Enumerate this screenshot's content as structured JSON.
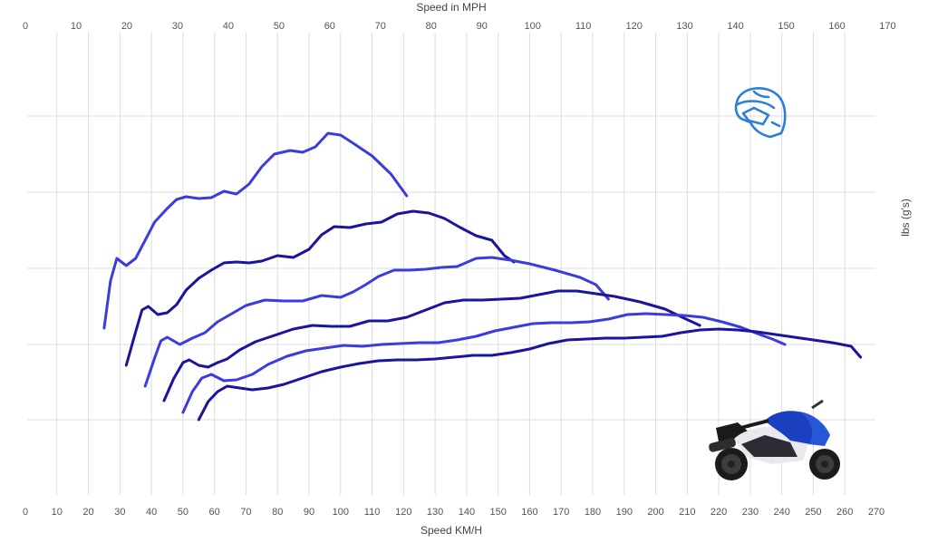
{
  "chart_data": {
    "type": "line",
    "xlabel_bottom": "Speed KM/H",
    "xlabel_top": "Speed in MPH",
    "ylabel": "lbs (g's)",
    "x_ticks_kmh": [
      0,
      10,
      20,
      30,
      40,
      50,
      60,
      70,
      80,
      90,
      100,
      110,
      120,
      130,
      140,
      150,
      160,
      170,
      180,
      190,
      200,
      210,
      220,
      230,
      240,
      250,
      260,
      270
    ],
    "x_ticks_mph": [
      0,
      10,
      20,
      30,
      40,
      50,
      60,
      70,
      80,
      90,
      100,
      110,
      120,
      130,
      140,
      150,
      160,
      170
    ],
    "xlim_kmh": [
      0,
      270
    ],
    "grid": true,
    "colors": {
      "light": "#3a3cdc",
      "dark": "#1a159c",
      "helmet": "#2a7fd6"
    },
    "icons": {
      "helmet": "helmet-icon",
      "motorcycle": "motorcycle-image"
    },
    "series": [
      {
        "color": "light",
        "points": [
          [
            25,
            362
          ],
          [
            27,
            310
          ],
          [
            29,
            285
          ],
          [
            32,
            293
          ],
          [
            35,
            285
          ],
          [
            38,
            265
          ],
          [
            41,
            245
          ],
          [
            45,
            230
          ],
          [
            48,
            220
          ],
          [
            51,
            217
          ],
          [
            55,
            219
          ],
          [
            59,
            218
          ],
          [
            63,
            211
          ],
          [
            67,
            214
          ],
          [
            71,
            203
          ],
          [
            75,
            184
          ],
          [
            79,
            170
          ],
          [
            84,
            166
          ],
          [
            88,
            168
          ],
          [
            92,
            162
          ],
          [
            96,
            147
          ],
          [
            100,
            149
          ],
          [
            104,
            158
          ],
          [
            110,
            172
          ],
          [
            116,
            192
          ],
          [
            121,
            216
          ]
        ]
      },
      {
        "color": "dark",
        "points": [
          [
            32,
            403
          ],
          [
            35,
            366
          ],
          [
            37,
            342
          ],
          [
            39,
            338
          ],
          [
            42,
            347
          ],
          [
            45,
            345
          ],
          [
            48,
            336
          ],
          [
            51,
            320
          ],
          [
            55,
            307
          ],
          [
            59,
            298
          ],
          [
            63,
            290
          ],
          [
            67,
            289
          ],
          [
            71,
            290
          ],
          [
            75,
            288
          ],
          [
            80,
            282
          ],
          [
            85,
            284
          ],
          [
            90,
            275
          ],
          [
            94,
            259
          ],
          [
            98,
            250
          ],
          [
            103,
            251
          ],
          [
            108,
            247
          ],
          [
            113,
            245
          ],
          [
            118,
            236
          ],
          [
            123,
            233
          ],
          [
            128,
            235
          ],
          [
            133,
            241
          ],
          [
            138,
            251
          ],
          [
            143,
            260
          ],
          [
            148,
            265
          ],
          [
            152,
            282
          ],
          [
            155,
            289
          ]
        ]
      },
      {
        "color": "light",
        "points": [
          [
            38,
            426
          ],
          [
            41,
            395
          ],
          [
            43,
            376
          ],
          [
            45,
            372
          ],
          [
            49,
            380
          ],
          [
            53,
            373
          ],
          [
            57,
            367
          ],
          [
            61,
            355
          ],
          [
            65,
            347
          ],
          [
            70,
            337
          ],
          [
            76,
            331
          ],
          [
            82,
            332
          ],
          [
            88,
            332
          ],
          [
            94,
            326
          ],
          [
            100,
            328
          ],
          [
            104,
            322
          ],
          [
            108,
            314
          ],
          [
            112,
            305
          ],
          [
            117,
            298
          ],
          [
            122,
            298
          ],
          [
            127,
            297
          ],
          [
            132,
            295
          ],
          [
            137,
            294
          ],
          [
            143,
            285
          ],
          [
            148,
            284
          ],
          [
            154,
            287
          ],
          [
            160,
            291
          ],
          [
            168,
            298
          ],
          [
            176,
            306
          ],
          [
            181,
            314
          ],
          [
            185,
            330
          ]
        ]
      },
      {
        "color": "dark",
        "points": [
          [
            44,
            442
          ],
          [
            47,
            418
          ],
          [
            50,
            400
          ],
          [
            52,
            397
          ],
          [
            55,
            403
          ],
          [
            58,
            405
          ],
          [
            61,
            400
          ],
          [
            64,
            396
          ],
          [
            68,
            386
          ],
          [
            73,
            377
          ],
          [
            79,
            370
          ],
          [
            85,
            363
          ],
          [
            91,
            359
          ],
          [
            97,
            360
          ],
          [
            103,
            360
          ],
          [
            109,
            354
          ],
          [
            115,
            354
          ],
          [
            121,
            350
          ],
          [
            127,
            342
          ],
          [
            133,
            334
          ],
          [
            139,
            331
          ],
          [
            145,
            331
          ],
          [
            151,
            330
          ],
          [
            157,
            329
          ],
          [
            163,
            325
          ],
          [
            169,
            321
          ],
          [
            175,
            321
          ],
          [
            181,
            324
          ],
          [
            187,
            327
          ],
          [
            195,
            333
          ],
          [
            203,
            341
          ],
          [
            209,
            351
          ],
          [
            214,
            359
          ]
        ]
      },
      {
        "color": "light",
        "points": [
          [
            50,
            455
          ],
          [
            53,
            432
          ],
          [
            56,
            417
          ],
          [
            59,
            413
          ],
          [
            63,
            420
          ],
          [
            67,
            419
          ],
          [
            72,
            413
          ],
          [
            77,
            402
          ],
          [
            83,
            393
          ],
          [
            89,
            387
          ],
          [
            95,
            384
          ],
          [
            101,
            381
          ],
          [
            107,
            382
          ],
          [
            113,
            380
          ],
          [
            119,
            379
          ],
          [
            125,
            378
          ],
          [
            131,
            378
          ],
          [
            137,
            375
          ],
          [
            143,
            371
          ],
          [
            149,
            365
          ],
          [
            155,
            361
          ],
          [
            161,
            357
          ],
          [
            167,
            356
          ],
          [
            173,
            356
          ],
          [
            179,
            355
          ],
          [
            185,
            352
          ],
          [
            191,
            347
          ],
          [
            197,
            346
          ],
          [
            203,
            347
          ],
          [
            209,
            348
          ],
          [
            215,
            350
          ],
          [
            221,
            355
          ],
          [
            227,
            361
          ],
          [
            233,
            369
          ],
          [
            237,
            374
          ],
          [
            241,
            380
          ]
        ]
      },
      {
        "color": "dark",
        "points": [
          [
            55,
            463
          ],
          [
            58,
            443
          ],
          [
            61,
            432
          ],
          [
            64,
            426
          ],
          [
            68,
            428
          ],
          [
            72,
            430
          ],
          [
            77,
            428
          ],
          [
            82,
            424
          ],
          [
            88,
            417
          ],
          [
            94,
            410
          ],
          [
            100,
            405
          ],
          [
            106,
            401
          ],
          [
            112,
            398
          ],
          [
            118,
            397
          ],
          [
            124,
            397
          ],
          [
            130,
            396
          ],
          [
            136,
            394
          ],
          [
            142,
            392
          ],
          [
            148,
            392
          ],
          [
            154,
            389
          ],
          [
            160,
            385
          ],
          [
            166,
            379
          ],
          [
            172,
            375
          ],
          [
            178,
            374
          ],
          [
            184,
            373
          ],
          [
            190,
            373
          ],
          [
            196,
            372
          ],
          [
            202,
            371
          ],
          [
            208,
            367
          ],
          [
            214,
            364
          ],
          [
            220,
            363
          ],
          [
            226,
            364
          ],
          [
            232,
            366
          ],
          [
            238,
            369
          ],
          [
            244,
            372
          ],
          [
            250,
            375
          ],
          [
            256,
            378
          ],
          [
            262,
            382
          ],
          [
            265,
            394
          ]
        ]
      }
    ]
  }
}
